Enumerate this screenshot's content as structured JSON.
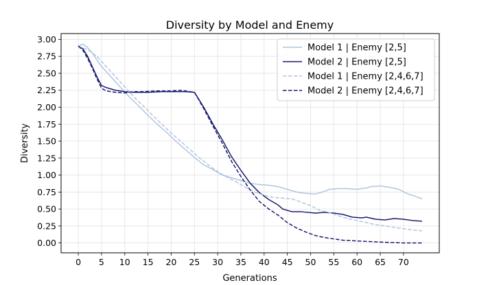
{
  "chart_data": {
    "type": "line",
    "title": "Diversity by Model and Enemy",
    "xlabel": "Generations",
    "ylabel": "Diversity",
    "xlim": [
      -3.7,
      77.7
    ],
    "ylim": [
      -0.145,
      3.085
    ],
    "xticks": [
      0,
      5,
      10,
      15,
      20,
      25,
      30,
      35,
      40,
      45,
      50,
      55,
      60,
      65,
      70
    ],
    "yticks": [
      0.0,
      0.25,
      0.5,
      0.75,
      1.0,
      1.25,
      1.5,
      1.75,
      2.0,
      2.25,
      2.5,
      2.75,
      3.0
    ],
    "grid": true,
    "legend_position": "top-right",
    "colors": {
      "light": "#b0c4de",
      "dark": "#191970"
    },
    "series": [
      {
        "name": "Model 1 | Enemy [2,5]",
        "color": "#b0c4de",
        "dash": "solid",
        "points": [
          [
            0,
            2.9
          ],
          [
            1,
            2.93
          ],
          [
            2,
            2.88
          ],
          [
            3,
            2.8
          ],
          [
            4,
            2.7
          ],
          [
            5,
            2.6
          ],
          [
            7,
            2.45
          ],
          [
            9,
            2.3
          ],
          [
            11,
            2.15
          ],
          [
            13,
            2.02
          ],
          [
            15,
            1.88
          ],
          [
            17,
            1.75
          ],
          [
            19,
            1.63
          ],
          [
            21,
            1.5
          ],
          [
            23,
            1.38
          ],
          [
            25,
            1.26
          ],
          [
            27,
            1.15
          ],
          [
            29,
            1.08
          ],
          [
            31,
            1.0
          ],
          [
            33,
            0.96
          ],
          [
            35,
            0.92
          ],
          [
            37,
            0.88
          ],
          [
            39,
            0.86
          ],
          [
            41,
            0.85
          ],
          [
            43,
            0.83
          ],
          [
            45,
            0.79
          ],
          [
            47,
            0.75
          ],
          [
            49,
            0.73
          ],
          [
            51,
            0.72
          ],
          [
            53,
            0.76
          ],
          [
            54,
            0.79
          ],
          [
            56,
            0.8
          ],
          [
            58,
            0.8
          ],
          [
            60,
            0.79
          ],
          [
            62,
            0.81
          ],
          [
            63,
            0.83
          ],
          [
            65,
            0.84
          ],
          [
            67,
            0.82
          ],
          [
            69,
            0.79
          ],
          [
            71,
            0.72
          ],
          [
            72,
            0.7
          ],
          [
            74,
            0.65
          ]
        ]
      },
      {
        "name": "Model 2 | Enemy [2,5]",
        "color": "#191970",
        "dash": "solid",
        "points": [
          [
            0,
            2.9
          ],
          [
            1,
            2.86
          ],
          [
            2,
            2.75
          ],
          [
            3,
            2.6
          ],
          [
            4,
            2.45
          ],
          [
            5,
            2.32
          ],
          [
            6,
            2.29
          ],
          [
            8,
            2.25
          ],
          [
            10,
            2.23
          ],
          [
            12,
            2.22
          ],
          [
            15,
            2.22
          ],
          [
            18,
            2.23
          ],
          [
            21,
            2.23
          ],
          [
            23,
            2.23
          ],
          [
            25,
            2.22
          ],
          [
            27,
            2.0
          ],
          [
            29,
            1.75
          ],
          [
            31,
            1.52
          ],
          [
            33,
            1.27
          ],
          [
            35,
            1.07
          ],
          [
            37,
            0.88
          ],
          [
            39,
            0.74
          ],
          [
            41,
            0.64
          ],
          [
            43,
            0.56
          ],
          [
            44,
            0.5
          ],
          [
            46,
            0.46
          ],
          [
            48,
            0.46
          ],
          [
            51,
            0.44
          ],
          [
            53,
            0.45
          ],
          [
            55,
            0.44
          ],
          [
            57,
            0.42
          ],
          [
            59,
            0.38
          ],
          [
            61,
            0.37
          ],
          [
            62,
            0.38
          ],
          [
            64,
            0.35
          ],
          [
            66,
            0.34
          ],
          [
            68,
            0.36
          ],
          [
            70,
            0.35
          ],
          [
            72,
            0.33
          ],
          [
            74,
            0.32
          ]
        ]
      },
      {
        "name": "Model 1 | Enemy [2,4,6,7]",
        "color": "#b0c4de",
        "dash": "dashed",
        "points": [
          [
            0,
            2.9
          ],
          [
            2,
            2.85
          ],
          [
            4,
            2.75
          ],
          [
            6,
            2.6
          ],
          [
            8,
            2.45
          ],
          [
            10,
            2.3
          ],
          [
            12,
            2.15
          ],
          [
            14,
            2.02
          ],
          [
            16,
            1.88
          ],
          [
            18,
            1.75
          ],
          [
            20,
            1.62
          ],
          [
            22,
            1.5
          ],
          [
            24,
            1.38
          ],
          [
            26,
            1.26
          ],
          [
            28,
            1.15
          ],
          [
            30,
            1.05
          ],
          [
            32,
            0.97
          ],
          [
            34,
            0.9
          ],
          [
            36,
            0.82
          ],
          [
            38,
            0.75
          ],
          [
            40,
            0.7
          ],
          [
            42,
            0.67
          ],
          [
            44,
            0.66
          ],
          [
            46,
            0.65
          ],
          [
            48,
            0.6
          ],
          [
            50,
            0.55
          ],
          [
            52,
            0.48
          ],
          [
            54,
            0.45
          ],
          [
            56,
            0.4
          ],
          [
            58,
            0.36
          ],
          [
            60,
            0.33
          ],
          [
            62,
            0.3
          ],
          [
            64,
            0.27
          ],
          [
            66,
            0.25
          ],
          [
            68,
            0.23
          ],
          [
            70,
            0.21
          ],
          [
            72,
            0.19
          ],
          [
            74,
            0.18
          ]
        ]
      },
      {
        "name": "Model 2 | Enemy [2,4,6,7]",
        "color": "#191970",
        "dash": "dashed",
        "points": [
          [
            0,
            2.9
          ],
          [
            1,
            2.84
          ],
          [
            2,
            2.72
          ],
          [
            3,
            2.58
          ],
          [
            4,
            2.42
          ],
          [
            5,
            2.28
          ],
          [
            6,
            2.24
          ],
          [
            8,
            2.22
          ],
          [
            10,
            2.21
          ],
          [
            12,
            2.23
          ],
          [
            14,
            2.23
          ],
          [
            17,
            2.24
          ],
          [
            20,
            2.24
          ],
          [
            22,
            2.25
          ],
          [
            25,
            2.22
          ],
          [
            27,
            1.98
          ],
          [
            29,
            1.72
          ],
          [
            31,
            1.47
          ],
          [
            33,
            1.2
          ],
          [
            35,
            0.98
          ],
          [
            37,
            0.78
          ],
          [
            39,
            0.61
          ],
          [
            41,
            0.5
          ],
          [
            43,
            0.41
          ],
          [
            45,
            0.3
          ],
          [
            47,
            0.22
          ],
          [
            49,
            0.16
          ],
          [
            51,
            0.11
          ],
          [
            53,
            0.08
          ],
          [
            55,
            0.06
          ],
          [
            57,
            0.04
          ],
          [
            60,
            0.03
          ],
          [
            63,
            0.02
          ],
          [
            66,
            0.01
          ],
          [
            70,
            0.0
          ],
          [
            74,
            0.0
          ]
        ]
      }
    ]
  }
}
